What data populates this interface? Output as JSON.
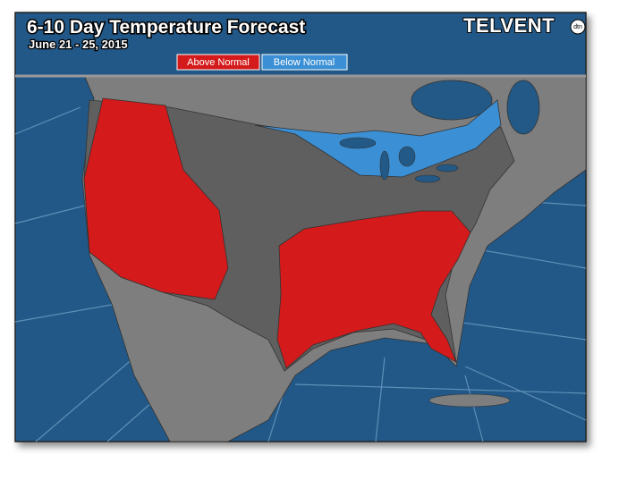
{
  "header": {
    "title": "6-10 Day Temperature Forecast",
    "subtitle": "June 21 - 25, 2015",
    "logo": "TELVENT",
    "logo_badge": "dtn"
  },
  "legend": [
    {
      "label": "Above Normal",
      "color": "#d41a1a"
    },
    {
      "label": "Below Normal",
      "color": "#3b8fd4"
    }
  ]
}
